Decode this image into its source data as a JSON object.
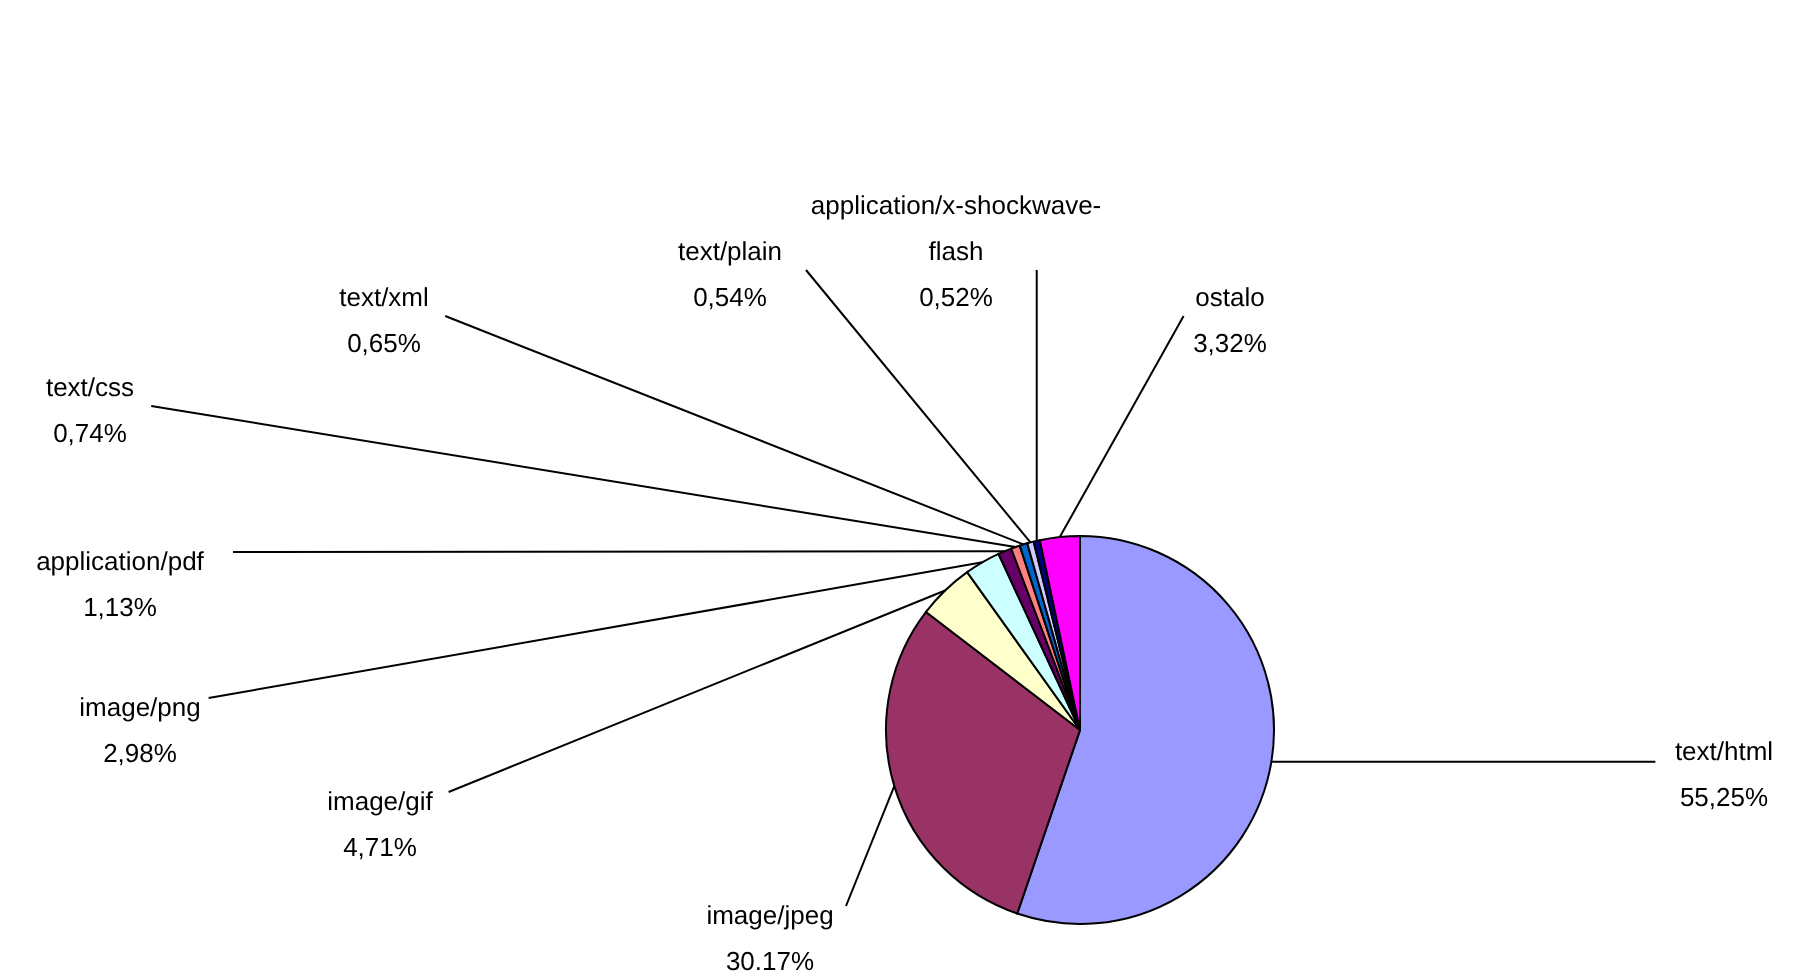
{
  "chart_data": {
    "type": "pie",
    "categories": [
      "text/html",
      "image/jpeg",
      "image/gif",
      "image/png",
      "application/pdf",
      "text/css",
      "text/xml",
      "text/plain",
      "application/x-shockwave-flash",
      "ostalo"
    ],
    "values": [
      55.25,
      30.17,
      4.71,
      2.98,
      1.13,
      0.74,
      0.65,
      0.54,
      0.52,
      3.32
    ],
    "value_labels": [
      "55,25%",
      "30.17%",
      "4,71%",
      "2,98%",
      "1,13%",
      "0,74%",
      "0,65%",
      "0,54%",
      "0,52%",
      "3,32%"
    ],
    "colors": [
      "#9999ff",
      "#993366",
      "#ffffcc",
      "#ccffff",
      "#660066",
      "#ff8080",
      "#0066cc",
      "#ccccff",
      "#000080",
      "#ff00ff"
    ]
  }
}
